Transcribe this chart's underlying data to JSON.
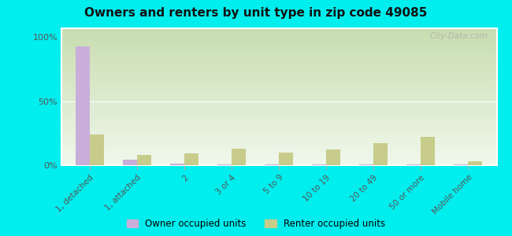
{
  "title": "Owners and renters by unit type in zip code 49085",
  "categories": [
    "1, detached",
    "1, attached",
    "2",
    "3 or 4",
    "5 to 9",
    "10 to 19",
    "20 to 49",
    "50 or more",
    "Mobile home"
  ],
  "owner_values": [
    93,
    4,
    1.5,
    0.5,
    0.5,
    0.5,
    0.5,
    0.5,
    0.5
  ],
  "renter_values": [
    24,
    8,
    9,
    13,
    10,
    12,
    17,
    22,
    3
  ],
  "owner_color": "#c9aed9",
  "renter_color": "#c8cc8a",
  "outer_bg": "#00eeee",
  "plot_bg_top": "#c8ddb0",
  "plot_bg_bottom": "#f0f8ec",
  "ylabel_ticks": [
    "0%",
    "50%",
    "100%"
  ],
  "ylabel_values": [
    0,
    50,
    100
  ],
  "legend_owner": "Owner occupied units",
  "legend_renter": "Renter occupied units",
  "bar_width": 0.3,
  "ylim": [
    0,
    107
  ],
  "watermark": "City-Data.com"
}
